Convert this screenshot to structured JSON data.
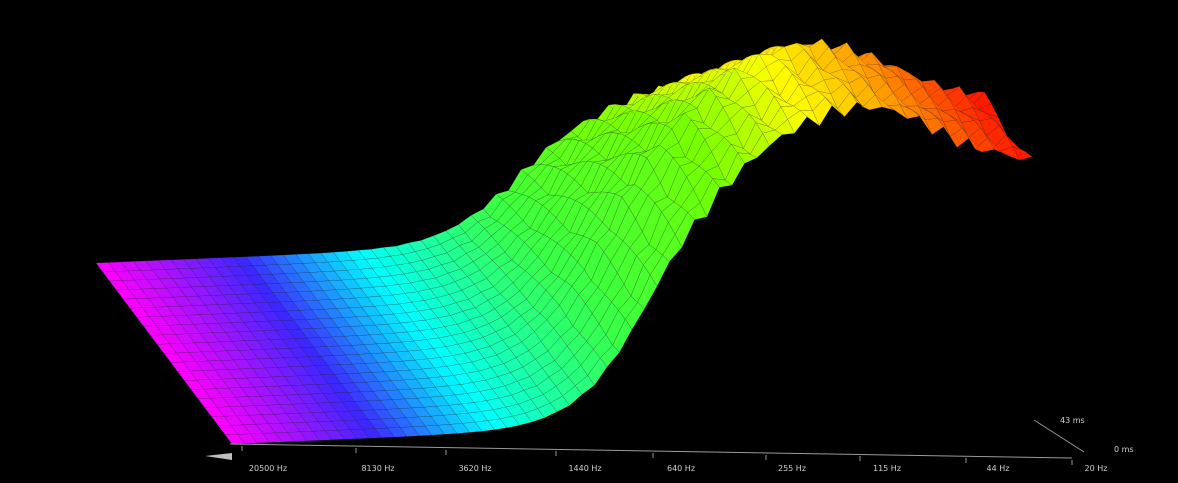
{
  "chart_data": {
    "type": "waterfall-3d",
    "title": "",
    "x_axis": {
      "label": "",
      "scale": "log",
      "tick_labels": [
        "20500 Hz",
        "8130 Hz",
        "3620 Hz",
        "1440 Hz",
        "640 Hz",
        "255 Hz",
        "115 Hz",
        "44 Hz",
        "20 Hz"
      ],
      "range_hz": [
        20,
        20500
      ]
    },
    "z_axis": {
      "label": "",
      "tick_labels": [
        "0 ms",
        "43 ms"
      ],
      "range_ms": [
        0,
        43
      ]
    },
    "colors": {
      "low": "#ff1a00",
      "mid_low": "#ff8c00",
      "mid": "#ffff00",
      "mid_high": "#66ff00",
      "high": "#00ffff",
      "top": "#ff00ff",
      "axis": "#9a9a9a",
      "text": "#cfcfcf"
    },
    "grid": false,
    "legend": "none"
  }
}
